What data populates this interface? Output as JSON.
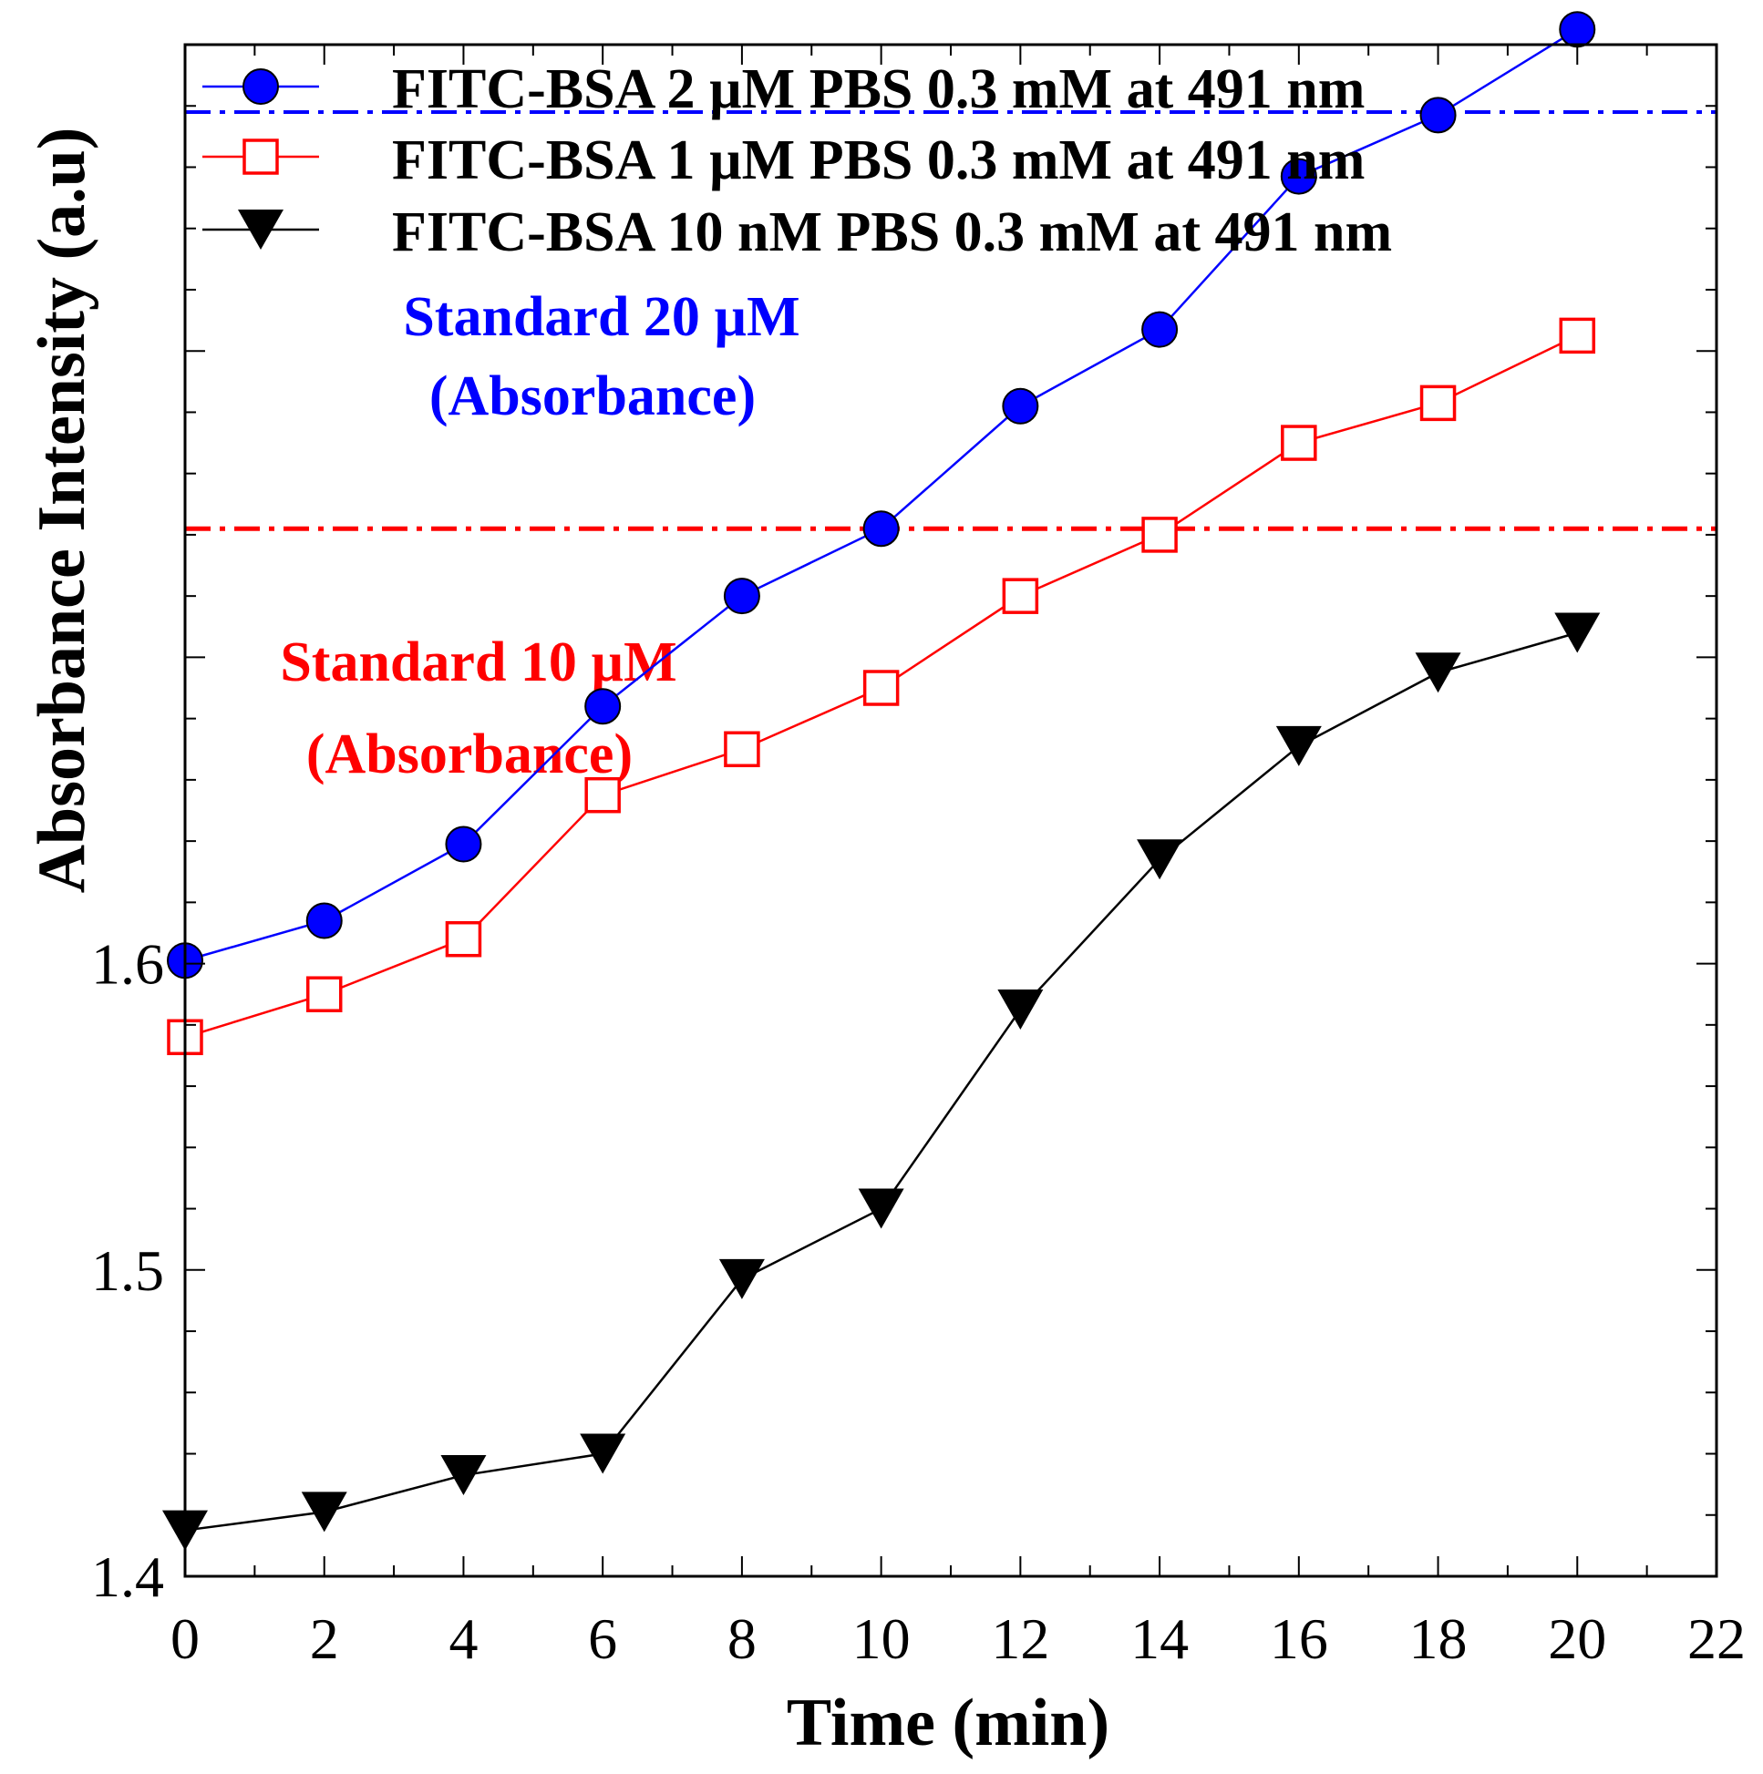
{
  "chart_data": {
    "type": "line",
    "title": "",
    "xlabel": "Time (min)",
    "ylabel": "Absorbance Intensity (a.u)",
    "xlim": [
      0,
      22
    ],
    "ylim": [
      1.4,
      1.9
    ],
    "xticks": [
      0,
      2,
      4,
      6,
      8,
      10,
      12,
      14,
      16,
      18,
      20,
      22
    ],
    "xtick_labels": [
      "0",
      "2",
      "4",
      "6",
      "8",
      "10",
      "12",
      "14",
      "16",
      "18",
      "20",
      "22"
    ],
    "yticks": [
      1.4,
      1.5,
      1.6
    ],
    "ytick_labels": [
      "1.4",
      "1.5",
      "1.6"
    ],
    "legend_position": "top-left",
    "grid": false,
    "x": [
      0,
      2,
      4,
      6,
      8,
      10,
      12,
      14,
      16,
      18,
      20
    ],
    "series": [
      {
        "name": "FITC-BSA 2 µM PBS 0.3 mM at 491 nm",
        "color": "#0000ff",
        "marker": "filled-circle",
        "values": [
          1.601,
          1.614,
          1.639,
          1.684,
          1.72,
          1.742,
          1.782,
          1.807,
          1.857,
          1.877,
          1.905
        ]
      },
      {
        "name": "FITC-BSA 1 µM PBS 0.3 mM at 491 nm",
        "color": "#ff0000",
        "marker": "open-square",
        "values": [
          1.576,
          1.59,
          1.608,
          1.655,
          1.67,
          1.69,
          1.72,
          1.74,
          1.77,
          1.783,
          1.805
        ]
      },
      {
        "name": "FITC-BSA 10 nM PBS 0.3 mM at 491 nm",
        "color": "#000000",
        "marker": "filled-down-triangle",
        "values": [
          1.415,
          1.421,
          1.433,
          1.44,
          1.497,
          1.52,
          1.585,
          1.634,
          1.671,
          1.695,
          1.708
        ]
      }
    ],
    "reference_lines": [
      {
        "label_line1": "Standard 20 µM",
        "label_line2": "(Absorbance)",
        "y": 1.878,
        "color": "#0000ff",
        "style": "dash-dot"
      },
      {
        "label_line1": "Standard 10 µM",
        "label_line2": "(Absorbance)",
        "y": 1.742,
        "color": "#ff0000",
        "style": "dash-dot"
      }
    ]
  }
}
